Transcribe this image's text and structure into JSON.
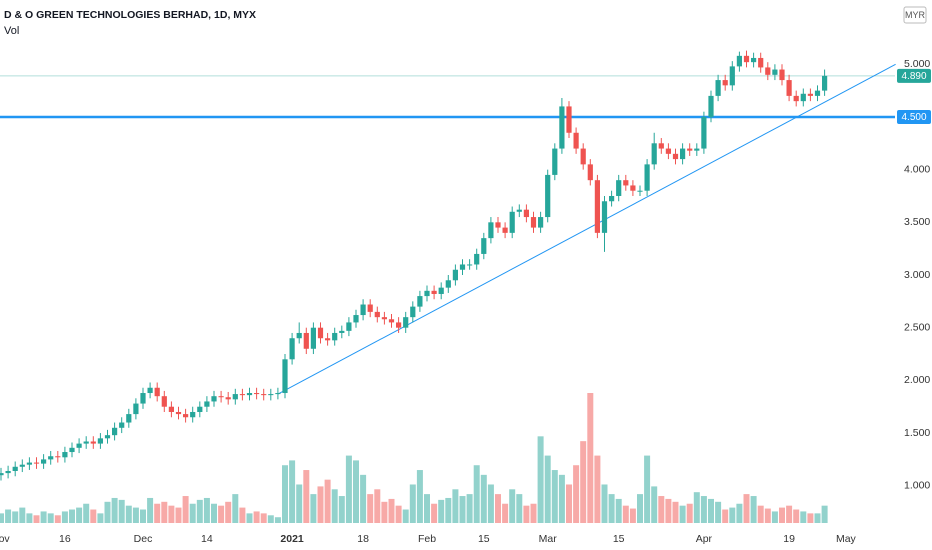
{
  "chart_data": {
    "type": "candlestick",
    "title": "D & O GREEN TECHNOLOGIES BERHAD, 1D, MYX",
    "volume_label": "Vol",
    "currency": "MYR",
    "up_color": "#26a69a",
    "down_color": "#ef5350",
    "volume_up_color": "rgba(38,166,154,0.5)",
    "volume_down_color": "rgba(239,83,80,0.5)",
    "ylim": [
      0.58,
      5.61
    ],
    "yticks": [
      {
        "value": 1,
        "label": "1.000"
      },
      {
        "value": 1.5,
        "label": "1.500"
      },
      {
        "value": 2,
        "label": "2.000"
      },
      {
        "value": 2.5,
        "label": "2.500"
      },
      {
        "value": 3,
        "label": "3.000"
      },
      {
        "value": 3.5,
        "label": "3.500"
      },
      {
        "value": 4,
        "label": "4.000"
      },
      {
        "value": 5,
        "label": "5.000"
      }
    ],
    "categories": [
      "Nov",
      null,
      null,
      null,
      null,
      null,
      null,
      null,
      null,
      "16",
      null,
      null,
      null,
      null,
      null,
      null,
      null,
      null,
      null,
      null,
      "Dec",
      null,
      null,
      null,
      null,
      null,
      null,
      null,
      null,
      "14",
      null,
      null,
      null,
      null,
      null,
      null,
      null,
      null,
      null,
      null,
      null,
      "2021",
      null,
      null,
      null,
      null,
      null,
      null,
      null,
      null,
      null,
      "18",
      null,
      null,
      null,
      null,
      null,
      null,
      null,
      null,
      "Feb",
      null,
      null,
      null,
      null,
      null,
      null,
      null,
      "15",
      null,
      null,
      null,
      null,
      null,
      null,
      null,
      null,
      "Mar",
      null,
      null,
      null,
      null,
      null,
      null,
      null,
      null,
      null,
      "15",
      null,
      null,
      null,
      null,
      null,
      null,
      null,
      null,
      null,
      null,
      null,
      "Apr",
      null,
      null,
      null,
      null,
      null,
      null,
      null,
      null,
      null,
      null,
      null,
      "19",
      null,
      null,
      null,
      null,
      null,
      null,
      null,
      "May"
    ],
    "open": [
      1.1,
      1.12,
      1.14,
      1.18,
      1.2,
      1.22,
      1.21,
      1.25,
      1.28,
      1.27,
      1.32,
      1.36,
      1.4,
      1.42,
      1.4,
      1.45,
      1.48,
      1.55,
      1.6,
      1.68,
      1.78,
      1.88,
      1.93,
      1.85,
      1.75,
      1.7,
      1.68,
      1.65,
      1.7,
      1.75,
      1.8,
      1.85,
      1.84,
      1.82,
      1.87,
      1.86,
      1.88,
      1.87,
      1.86,
      1.87,
      1.88,
      2.2,
      2.4,
      2.45,
      2.3,
      2.5,
      2.4,
      2.38,
      2.45,
      2.47,
      2.55,
      2.62,
      2.72,
      2.65,
      2.6,
      2.58,
      2.55,
      2.5,
      2.6,
      2.7,
      2.8,
      2.85,
      2.82,
      2.88,
      2.95,
      3.05,
      3.1,
      3.1,
      3.2,
      3.35,
      3.5,
      3.45,
      3.4,
      3.6,
      3.62,
      3.55,
      3.45,
      3.55,
      3.95,
      4.2,
      4.6,
      4.35,
      4.2,
      4.05,
      3.9,
      3.4,
      3.7,
      3.75,
      3.9,
      3.85,
      3.8,
      3.8,
      4.05,
      4.25,
      4.2,
      4.15,
      4.1,
      4.2,
      4.18,
      4.2,
      4.5,
      4.7,
      4.85,
      4.8,
      4.98,
      5.08,
      5.02,
      5.06,
      4.97,
      4.9,
      4.95,
      4.85,
      4.7,
      4.65,
      4.72,
      4.7,
      4.75,
      null,
      null,
      null
    ],
    "high": [
      1.17,
      1.19,
      1.23,
      1.25,
      1.27,
      1.27,
      1.3,
      1.33,
      1.33,
      1.37,
      1.41,
      1.45,
      1.47,
      1.47,
      1.5,
      1.53,
      1.6,
      1.65,
      1.73,
      1.83,
      1.93,
      1.98,
      1.98,
      1.9,
      1.8,
      1.75,
      1.73,
      1.75,
      1.8,
      1.85,
      1.9,
      1.9,
      1.89,
      1.92,
      1.92,
      1.93,
      1.93,
      1.92,
      1.92,
      1.93,
      2.25,
      2.45,
      2.55,
      2.5,
      2.55,
      2.55,
      2.45,
      2.5,
      2.52,
      2.6,
      2.67,
      2.77,
      2.77,
      2.7,
      2.65,
      2.63,
      2.6,
      2.65,
      2.75,
      2.85,
      2.9,
      2.9,
      2.93,
      3.0,
      3.1,
      3.15,
      3.15,
      3.25,
      3.4,
      3.55,
      3.55,
      3.5,
      3.65,
      3.67,
      3.67,
      3.6,
      3.6,
      4.0,
      4.25,
      4.68,
      4.65,
      4.4,
      4.25,
      4.1,
      3.95,
      3.75,
      3.8,
      3.95,
      3.95,
      3.9,
      3.85,
      4.1,
      4.35,
      4.3,
      4.25,
      4.2,
      4.25,
      4.25,
      4.25,
      4.55,
      4.75,
      4.9,
      4.9,
      5.03,
      5.12,
      5.13,
      5.11,
      5.11,
      5.02,
      5.0,
      5.0,
      4.9,
      4.75,
      4.77,
      4.77,
      4.8,
      4.95,
      null,
      null,
      null
    ],
    "low": [
      1.05,
      1.07,
      1.09,
      1.13,
      1.15,
      1.16,
      1.16,
      1.2,
      1.22,
      1.22,
      1.27,
      1.31,
      1.35,
      1.35,
      1.35,
      1.4,
      1.43,
      1.5,
      1.55,
      1.63,
      1.73,
      1.83,
      1.8,
      1.7,
      1.65,
      1.63,
      1.6,
      1.6,
      1.65,
      1.7,
      1.75,
      1.79,
      1.77,
      1.77,
      1.81,
      1.81,
      1.82,
      1.81,
      1.81,
      1.82,
      1.83,
      2.15,
      2.35,
      2.25,
      2.25,
      2.35,
      2.33,
      2.33,
      2.4,
      2.42,
      2.5,
      2.57,
      2.6,
      2.55,
      2.53,
      2.5,
      2.45,
      2.45,
      2.55,
      2.65,
      2.75,
      2.77,
      2.77,
      2.83,
      2.9,
      3.0,
      3.05,
      3.05,
      3.15,
      3.3,
      3.4,
      3.35,
      3.35,
      3.55,
      3.5,
      3.4,
      3.4,
      3.5,
      3.9,
      4.15,
      4.3,
      4.15,
      4.0,
      3.85,
      3.35,
      3.22,
      3.65,
      3.7,
      3.8,
      3.75,
      3.75,
      3.75,
      4.0,
      4.15,
      4.1,
      4.05,
      4.05,
      4.13,
      4.13,
      4.15,
      4.45,
      4.65,
      4.75,
      4.75,
      4.93,
      4.97,
      4.97,
      4.92,
      4.85,
      4.85,
      4.8,
      4.65,
      4.6,
      4.6,
      4.65,
      4.65,
      4.7,
      null,
      null,
      null
    ],
    "close": [
      1.12,
      1.14,
      1.18,
      1.2,
      1.22,
      1.21,
      1.25,
      1.28,
      1.27,
      1.32,
      1.36,
      1.4,
      1.42,
      1.4,
      1.45,
      1.48,
      1.55,
      1.6,
      1.68,
      1.78,
      1.88,
      1.93,
      1.85,
      1.75,
      1.7,
      1.68,
      1.65,
      1.7,
      1.75,
      1.8,
      1.85,
      1.84,
      1.82,
      1.87,
      1.86,
      1.88,
      1.87,
      1.86,
      1.87,
      1.88,
      2.2,
      2.4,
      2.45,
      2.3,
      2.5,
      2.4,
      2.38,
      2.45,
      2.47,
      2.55,
      2.62,
      2.72,
      2.65,
      2.6,
      2.58,
      2.55,
      2.5,
      2.6,
      2.7,
      2.8,
      2.85,
      2.82,
      2.88,
      2.95,
      3.05,
      3.1,
      3.1,
      3.2,
      3.35,
      3.5,
      3.45,
      3.4,
      3.6,
      3.62,
      3.55,
      3.45,
      3.55,
      3.95,
      4.2,
      4.6,
      4.35,
      4.2,
      4.05,
      3.9,
      3.4,
      3.7,
      3.75,
      3.9,
      3.85,
      3.8,
      3.8,
      4.05,
      4.25,
      4.2,
      4.15,
      4.1,
      4.2,
      4.18,
      4.2,
      4.5,
      4.7,
      4.85,
      4.8,
      4.98,
      5.08,
      5.02,
      5.06,
      4.97,
      4.9,
      4.95,
      4.85,
      4.7,
      4.65,
      4.72,
      4.7,
      4.75,
      4.89,
      null,
      null,
      null
    ],
    "volume": [
      10,
      14,
      12,
      16,
      10,
      8,
      12,
      10,
      8,
      12,
      14,
      16,
      20,
      14,
      10,
      22,
      26,
      24,
      18,
      16,
      14,
      26,
      20,
      22,
      18,
      16,
      28,
      20,
      24,
      26,
      20,
      18,
      22,
      30,
      16,
      10,
      12,
      10,
      8,
      6,
      60,
      65,
      40,
      55,
      30,
      38,
      45,
      35,
      28,
      70,
      65,
      50,
      30,
      35,
      22,
      25,
      18,
      14,
      40,
      55,
      30,
      20,
      24,
      26,
      35,
      28,
      30,
      60,
      50,
      40,
      30,
      20,
      35,
      30,
      18,
      20,
      90,
      70,
      55,
      50,
      40,
      60,
      85,
      135,
      70,
      40,
      30,
      25,
      18,
      15,
      30,
      70,
      38,
      28,
      25,
      22,
      18,
      20,
      32,
      28,
      25,
      22,
      14,
      16,
      20,
      30,
      28,
      18,
      15,
      12,
      16,
      18,
      14,
      12,
      10,
      10,
      18,
      null,
      null,
      null
    ],
    "last_price": {
      "value": 4.89,
      "label": "4.890",
      "color": "#26a69a"
    },
    "hline": {
      "value": 4.5,
      "label": "4.500",
      "color": "#2196f3"
    },
    "trendline": {
      "from": [
        39,
        1.87
      ],
      "to": [
        126,
        5.0
      ],
      "color": "#2196f3"
    }
  }
}
